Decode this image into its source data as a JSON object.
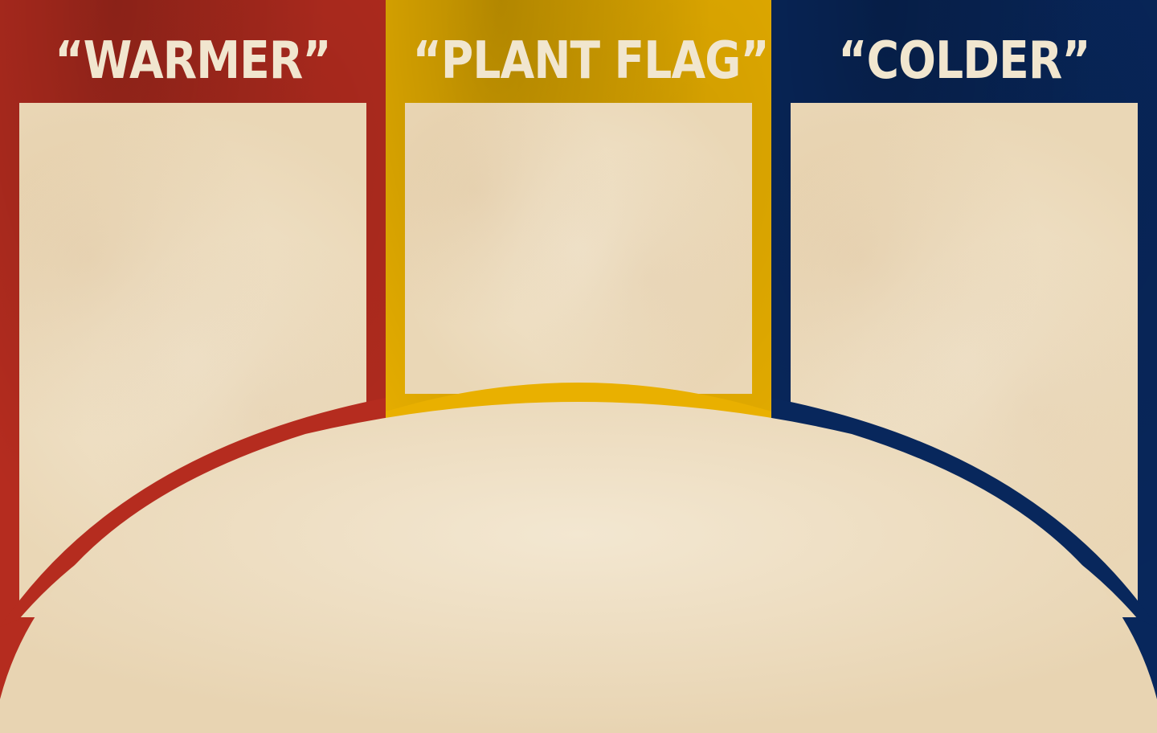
{
  "board": {
    "columns": [
      {
        "id": "warmer",
        "label": "“WARMER”",
        "color": "#b52c1f"
      },
      {
        "id": "plant-flag",
        "label": "“PLANT FLAG”",
        "color": "#e9b000"
      },
      {
        "id": "colder",
        "label": "“COLDER”",
        "color": "#08275c"
      }
    ],
    "paper_color": "#eddcbd",
    "title_color": "#f1e6cf"
  }
}
